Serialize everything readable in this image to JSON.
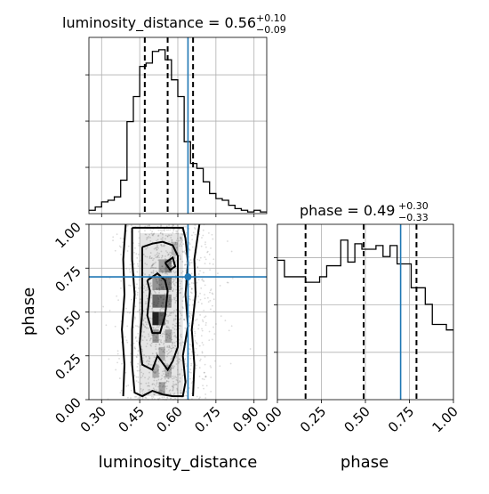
{
  "chart_data": [
    {
      "type": "histogram",
      "panel": "marginal-luminosity_distance",
      "title": {
        "param": "luminosity_distance",
        "median": "0.56",
        "plus": "+0.10",
        "minus": "−0.09"
      },
      "x": {
        "range": [
          0.25,
          0.95
        ]
      },
      "bins": [
        0.25,
        0.275,
        0.3,
        0.325,
        0.35,
        0.375,
        0.4,
        0.425,
        0.45,
        0.475,
        0.5,
        0.525,
        0.55,
        0.575,
        0.6,
        0.625,
        0.65,
        0.675,
        0.7,
        0.725,
        0.75,
        0.775,
        0.8,
        0.825,
        0.85,
        0.875,
        0.9,
        0.925,
        0.95
      ],
      "counts": [
        0.02,
        0.04,
        0.07,
        0.08,
        0.1,
        0.2,
        0.55,
        0.7,
        0.88,
        0.9,
        0.97,
        0.98,
        0.92,
        0.8,
        0.7,
        0.43,
        0.3,
        0.27,
        0.19,
        0.12,
        0.09,
        0.08,
        0.05,
        0.03,
        0.02,
        0.01,
        0.02,
        0.01
      ],
      "quantiles": [
        0.47,
        0.56,
        0.66
      ],
      "truth": 0.64
    },
    {
      "type": "histogram",
      "panel": "marginal-phase",
      "title": {
        "param": "phase",
        "median": "0.49",
        "plus": "+0.30",
        "minus": "−0.33"
      },
      "x": {
        "range": [
          0.0,
          1.0
        ],
        "ticks": [
          "0.00",
          "0.25",
          "0.50",
          "0.75",
          "1.00"
        ]
      },
      "bins": [
        0.0,
        0.04,
        0.08,
        0.12,
        0.16,
        0.2,
        0.24,
        0.28,
        0.32,
        0.36,
        0.4,
        0.44,
        0.48,
        0.52,
        0.56,
        0.6,
        0.64,
        0.68,
        0.72,
        0.76,
        0.8,
        0.84,
        0.88,
        0.92,
        0.96,
        1.0
      ],
      "counts": [
        0.76,
        0.67,
        0.67,
        0.67,
        0.64,
        0.64,
        0.67,
        0.73,
        0.73,
        0.87,
        0.75,
        0.85,
        0.82,
        0.82,
        0.84,
        0.78,
        0.84,
        0.74,
        0.74,
        0.61,
        0.61,
        0.52,
        0.41,
        0.41,
        0.38
      ],
      "quantiles": [
        0.16,
        0.49,
        0.79
      ],
      "truth": 0.7
    },
    {
      "type": "scatter",
      "panel": "joint-luminosity_distance-phase",
      "xlabel": "luminosity_distance",
      "ylabel": "phase",
      "x": {
        "range": [
          0.25,
          0.95
        ],
        "ticks": [
          "0.30",
          "0.45",
          "0.60",
          "0.75",
          "0.90"
        ]
      },
      "y": {
        "range": [
          0.0,
          1.0
        ],
        "ticks": [
          "0.00",
          "0.25",
          "0.50",
          "0.75",
          "1.00"
        ]
      },
      "truth": [
        0.64,
        0.7
      ],
      "density_cells": [
        {
          "x": 0.5,
          "y": 0.65,
          "shade": 0.35
        },
        {
          "x": 0.525,
          "y": 0.65,
          "shade": 0.45
        },
        {
          "x": 0.5,
          "y": 0.55,
          "shade": 0.55
        },
        {
          "x": 0.525,
          "y": 0.55,
          "shade": 0.5
        },
        {
          "x": 0.5,
          "y": 0.45,
          "shade": 0.85
        },
        {
          "x": 0.525,
          "y": 0.45,
          "shade": 0.6
        },
        {
          "x": 0.5,
          "y": 0.35,
          "shade": 0.35
        },
        {
          "x": 0.55,
          "y": 0.55,
          "shade": 0.4
        },
        {
          "x": 0.55,
          "y": 0.65,
          "shade": 0.5
        },
        {
          "x": 0.55,
          "y": 0.75,
          "shade": 0.45
        },
        {
          "x": 0.525,
          "y": 0.75,
          "shade": 0.3
        },
        {
          "x": 0.55,
          "y": 0.35,
          "shade": 0.3
        },
        {
          "x": 0.525,
          "y": 0.25,
          "shade": 0.25
        },
        {
          "x": 0.5,
          "y": 0.15,
          "shade": 0.25
        },
        {
          "x": 0.55,
          "y": 0.15,
          "shade": 0.25
        },
        {
          "x": 0.525,
          "y": 0.05,
          "shade": 0.3
        },
        {
          "x": 0.575,
          "y": 0.85,
          "shade": 0.2
        }
      ],
      "contours": [
        [
          [
            0.48,
            0.68
          ],
          [
            0.49,
            0.62
          ],
          [
            0.48,
            0.48
          ],
          [
            0.5,
            0.38
          ],
          [
            0.53,
            0.38
          ],
          [
            0.55,
            0.48
          ],
          [
            0.56,
            0.62
          ],
          [
            0.55,
            0.68
          ],
          [
            0.52,
            0.72
          ],
          [
            0.48,
            0.68
          ]
        ],
        [
          [
            0.55,
            0.78
          ],
          [
            0.57,
            0.74
          ],
          [
            0.59,
            0.76
          ],
          [
            0.58,
            0.81
          ],
          [
            0.55,
            0.78
          ]
        ],
        [
          [
            0.46,
            0.87
          ],
          [
            0.46,
            0.7
          ],
          [
            0.46,
            0.5
          ],
          [
            0.45,
            0.32
          ],
          [
            0.46,
            0.2
          ],
          [
            0.5,
            0.17
          ],
          [
            0.52,
            0.25
          ],
          [
            0.56,
            0.17
          ],
          [
            0.58,
            0.22
          ],
          [
            0.6,
            0.3
          ],
          [
            0.6,
            0.5
          ],
          [
            0.6,
            0.7
          ],
          [
            0.6,
            0.82
          ],
          [
            0.58,
            0.88
          ],
          [
            0.54,
            0.9
          ],
          [
            0.5,
            0.89
          ],
          [
            0.46,
            0.87
          ]
        ],
        [
          [
            0.42,
            0.98
          ],
          [
            0.42,
            0.8
          ],
          [
            0.43,
            0.6
          ],
          [
            0.42,
            0.4
          ],
          [
            0.42,
            0.2
          ],
          [
            0.43,
            0.04
          ],
          [
            0.46,
            0.02
          ],
          [
            0.5,
            0.05
          ],
          [
            0.54,
            0.03
          ],
          [
            0.58,
            0.02
          ],
          [
            0.62,
            0.02
          ],
          [
            0.63,
            0.1
          ],
          [
            0.62,
            0.25
          ],
          [
            0.64,
            0.42
          ],
          [
            0.63,
            0.6
          ],
          [
            0.64,
            0.78
          ],
          [
            0.63,
            0.92
          ],
          [
            0.62,
            0.98
          ],
          [
            0.42,
            0.98
          ]
        ],
        [
          [
            0.395,
            1.0
          ],
          [
            0.385,
            0.8
          ],
          [
            0.39,
            0.6
          ],
          [
            0.38,
            0.4
          ],
          [
            0.39,
            0.2
          ],
          [
            0.385,
            0.02
          ]
        ],
        [
          [
            0.685,
            1.0
          ],
          [
            0.665,
            0.8
          ],
          [
            0.67,
            0.6
          ],
          [
            0.655,
            0.4
          ],
          [
            0.665,
            0.2
          ],
          [
            0.66,
            0.02
          ]
        ]
      ]
    }
  ]
}
